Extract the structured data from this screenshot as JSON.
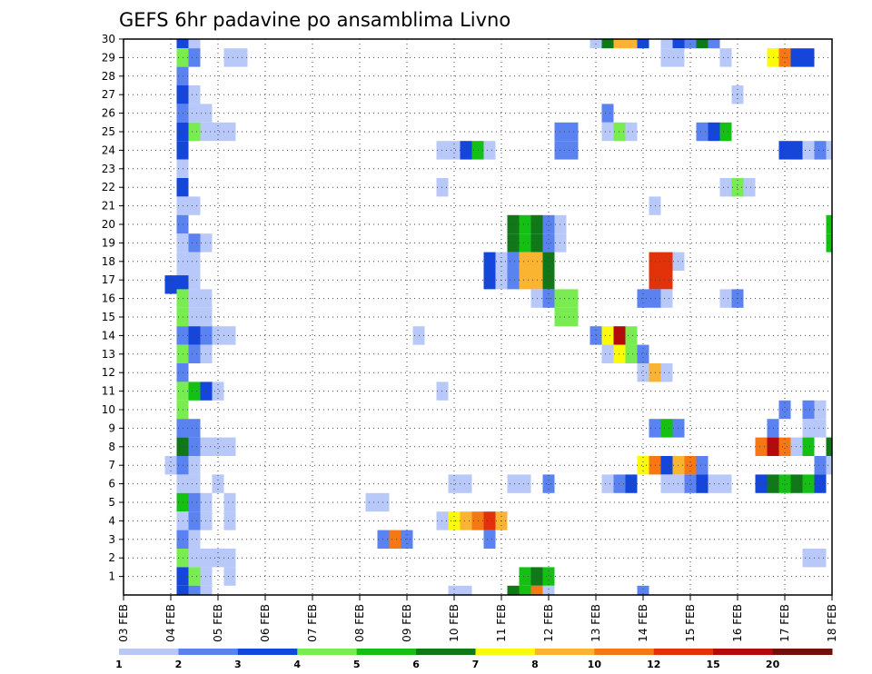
{
  "chart_data": {
    "type": "heatmap",
    "title": "GEFS 6hr padavine po ansamblima Livno",
    "x_tick_labels": [
      "03 FEB",
      "04 FEB",
      "05 FEB",
      "06 FEB",
      "07 FEB",
      "08 FEB",
      "09 FEB",
      "10 FEB",
      "11 FEB",
      "12 FEB",
      "13 FEB",
      "14 FEB",
      "15 FEB",
      "16 FEB",
      "17 FEB",
      "18 FEB"
    ],
    "y_tick_labels": [
      "1",
      "2",
      "3",
      "4",
      "5",
      "6",
      "7",
      "8",
      "9",
      "10",
      "11",
      "12",
      "13",
      "14",
      "15",
      "16",
      "17",
      "18",
      "19",
      "20",
      "21",
      "22",
      "23",
      "24",
      "25",
      "26",
      "27",
      "28",
      "29",
      "30"
    ],
    "xlim_days": [
      3,
      18
    ],
    "ylim_member": [
      0,
      30
    ],
    "grid": true,
    "colorbar": {
      "levels": [
        "1",
        "2",
        "3",
        "4",
        "5",
        "6",
        "7",
        "8",
        "10",
        "12",
        "15",
        "20"
      ],
      "colors": [
        "#b8c8f8",
        "#5a82f0",
        "#1446dc",
        "#78ec50",
        "#14c014",
        "#107818",
        "#fafa0a",
        "#fab432",
        "#f57814",
        "#e1320a",
        "#b40a0a",
        "#701008"
      ]
    },
    "cells": [
      [
        4.25,
        30,
        3
      ],
      [
        4.5,
        30,
        1
      ],
      [
        13,
        30,
        1
      ],
      [
        13.25,
        30,
        6
      ],
      [
        13.5,
        30,
        8
      ],
      [
        13.75,
        30,
        8
      ],
      [
        14,
        30,
        3
      ],
      [
        14.5,
        30,
        1
      ],
      [
        14.75,
        30,
        3
      ],
      [
        15,
        30,
        2
      ],
      [
        15.25,
        30,
        6
      ],
      [
        15.5,
        30,
        2
      ],
      [
        4.25,
        29,
        4
      ],
      [
        4.5,
        29,
        2
      ],
      [
        5.25,
        29,
        1
      ],
      [
        5.5,
        29,
        1
      ],
      [
        14.5,
        29,
        1
      ],
      [
        14.75,
        29,
        1
      ],
      [
        15.75,
        29,
        1
      ],
      [
        16.75,
        29,
        7
      ],
      [
        17,
        29,
        9
      ],
      [
        17.25,
        29,
        3
      ],
      [
        17.5,
        29,
        3
      ],
      [
        4.25,
        28,
        2
      ],
      [
        4.25,
        27,
        3
      ],
      [
        4.5,
        27,
        1
      ],
      [
        16,
        27,
        1
      ],
      [
        4.25,
        26,
        2
      ],
      [
        4.5,
        26,
        1
      ],
      [
        4.75,
        26,
        1
      ],
      [
        13.25,
        26,
        2
      ],
      [
        4.25,
        25,
        3
      ],
      [
        4.5,
        25,
        4
      ],
      [
        4.75,
        25,
        1
      ],
      [
        5,
        25,
        1
      ],
      [
        5.25,
        25,
        1
      ],
      [
        12.25,
        25,
        2
      ],
      [
        12.5,
        25,
        2
      ],
      [
        13.25,
        25,
        1
      ],
      [
        13.5,
        25,
        4
      ],
      [
        13.75,
        25,
        1
      ],
      [
        15.25,
        25,
        2
      ],
      [
        15.5,
        25,
        3
      ],
      [
        15.75,
        25,
        5
      ],
      [
        4.25,
        24,
        3
      ],
      [
        9.75,
        24,
        1
      ],
      [
        10,
        24,
        1
      ],
      [
        10.25,
        24,
        3
      ],
      [
        10.5,
        24,
        5
      ],
      [
        10.75,
        24,
        1
      ],
      [
        12.25,
        24,
        2
      ],
      [
        12.5,
        24,
        2
      ],
      [
        17,
        24,
        3
      ],
      [
        17.25,
        24,
        3
      ],
      [
        17.5,
        24,
        1
      ],
      [
        17.75,
        24,
        2
      ],
      [
        18,
        24,
        1
      ],
      [
        4.25,
        23,
        1
      ],
      [
        4.25,
        22,
        3
      ],
      [
        9.75,
        22,
        1
      ],
      [
        15.75,
        22,
        1
      ],
      [
        16,
        22,
        4
      ],
      [
        16.25,
        22,
        1
      ],
      [
        4.25,
        21,
        1
      ],
      [
        4.5,
        21,
        1
      ],
      [
        14.25,
        21,
        1
      ],
      [
        4.25,
        20,
        2
      ],
      [
        11.25,
        20,
        6
      ],
      [
        11.5,
        20,
        5
      ],
      [
        11.75,
        20,
        6
      ],
      [
        12,
        20,
        2
      ],
      [
        12.25,
        20,
        1
      ],
      [
        18,
        20,
        5
      ],
      [
        4.25,
        19,
        1
      ],
      [
        4.5,
        19,
        2
      ],
      [
        4.75,
        19,
        1
      ],
      [
        11.25,
        19,
        6
      ],
      [
        11.5,
        19,
        5
      ],
      [
        11.75,
        19,
        6
      ],
      [
        12,
        19,
        2
      ],
      [
        12.25,
        19,
        1
      ],
      [
        18,
        19,
        5
      ],
      [
        4.25,
        18,
        1
      ],
      [
        4.5,
        18,
        1
      ],
      [
        10.75,
        18,
        3
      ],
      [
        11,
        18,
        1
      ],
      [
        11.25,
        18,
        2
      ],
      [
        11.5,
        18,
        8
      ],
      [
        11.75,
        18,
        8
      ],
      [
        12,
        18,
        6
      ],
      [
        14.25,
        18,
        10
      ],
      [
        14.5,
        18,
        10
      ],
      [
        14.75,
        18,
        1
      ],
      [
        4.25,
        17,
        1
      ],
      [
        4.5,
        17,
        1
      ],
      [
        10.75,
        17,
        3
      ],
      [
        11,
        17,
        1
      ],
      [
        11.25,
        17,
        2
      ],
      [
        11.5,
        17,
        8
      ],
      [
        11.75,
        17,
        8
      ],
      [
        12,
        17,
        6
      ],
      [
        14.25,
        17,
        10
      ],
      [
        14.5,
        17,
        10
      ],
      [
        4,
        16.75,
        3
      ],
      [
        4.25,
        16.75,
        3
      ],
      [
        4.25,
        16,
        4
      ],
      [
        4.5,
        16,
        1
      ],
      [
        4.75,
        16,
        1
      ],
      [
        11.75,
        16,
        1
      ],
      [
        12,
        16,
        2
      ],
      [
        12.25,
        16,
        4
      ],
      [
        12.5,
        16,
        4
      ],
      [
        14,
        16,
        2
      ],
      [
        14.25,
        16,
        2
      ],
      [
        14.5,
        16,
        1
      ],
      [
        15.75,
        16,
        1
      ],
      [
        16,
        16,
        2
      ],
      [
        4.25,
        15,
        4
      ],
      [
        4.5,
        15,
        1
      ],
      [
        4.75,
        15,
        1
      ],
      [
        12.25,
        15,
        4
      ],
      [
        12.5,
        15,
        4
      ],
      [
        4.25,
        14,
        2
      ],
      [
        4.5,
        14,
        3
      ],
      [
        4.75,
        14,
        2
      ],
      [
        5,
        14,
        1
      ],
      [
        5.25,
        14,
        1
      ],
      [
        9.25,
        14,
        1
      ],
      [
        13,
        14,
        2
      ],
      [
        13.25,
        14,
        7
      ],
      [
        13.5,
        14,
        11
      ],
      [
        13.75,
        14,
        4
      ],
      [
        4.25,
        13,
        4
      ],
      [
        4.5,
        13,
        2
      ],
      [
        4.75,
        13,
        1
      ],
      [
        13.25,
        13,
        1
      ],
      [
        13.5,
        13,
        7
      ],
      [
        13.75,
        13,
        4
      ],
      [
        14,
        13,
        2
      ],
      [
        4.25,
        12,
        2
      ],
      [
        14,
        12,
        1
      ],
      [
        14.25,
        12,
        8
      ],
      [
        14.5,
        12,
        1
      ],
      [
        4.25,
        11,
        4
      ],
      [
        4.5,
        11,
        5
      ],
      [
        4.75,
        11,
        3
      ],
      [
        5,
        11,
        1
      ],
      [
        9.75,
        11,
        1
      ],
      [
        4.25,
        10,
        4
      ],
      [
        17,
        10,
        2
      ],
      [
        17.5,
        10,
        2
      ],
      [
        17.75,
        10,
        1
      ],
      [
        4.25,
        9,
        2
      ],
      [
        4.5,
        9,
        2
      ],
      [
        14.25,
        9,
        2
      ],
      [
        14.5,
        9,
        5
      ],
      [
        14.75,
        9,
        2
      ],
      [
        16.75,
        9,
        2
      ],
      [
        17.5,
        9,
        1
      ],
      [
        17.75,
        9,
        1
      ],
      [
        4.25,
        8,
        6
      ],
      [
        4.5,
        8,
        2
      ],
      [
        4.75,
        8,
        1
      ],
      [
        5,
        8,
        1
      ],
      [
        5.25,
        8,
        1
      ],
      [
        16.5,
        8,
        9
      ],
      [
        16.75,
        8,
        11
      ],
      [
        17,
        8,
        9
      ],
      [
        17.25,
        8,
        1
      ],
      [
        17.5,
        8,
        5
      ],
      [
        18,
        8,
        6
      ],
      [
        4,
        7,
        1
      ],
      [
        4.25,
        7,
        2
      ],
      [
        4.5,
        7,
        1
      ],
      [
        14,
        7,
        7
      ],
      [
        14.25,
        7,
        9
      ],
      [
        14.5,
        7,
        3
      ],
      [
        14.75,
        7,
        8
      ],
      [
        15,
        7,
        9
      ],
      [
        15.25,
        7,
        2
      ],
      [
        17.75,
        7,
        2
      ],
      [
        18,
        7,
        1
      ],
      [
        4.25,
        6,
        1
      ],
      [
        4.5,
        6,
        1
      ],
      [
        5,
        6,
        1
      ],
      [
        10,
        6,
        1
      ],
      [
        10.25,
        6,
        1
      ],
      [
        11.25,
        6,
        1
      ],
      [
        11.5,
        6,
        1
      ],
      [
        12,
        6,
        2
      ],
      [
        13.25,
        6,
        1
      ],
      [
        13.5,
        6,
        2
      ],
      [
        13.75,
        6,
        3
      ],
      [
        14.5,
        6,
        1
      ],
      [
        14.75,
        6,
        1
      ],
      [
        15,
        6,
        2
      ],
      [
        15.25,
        6,
        3
      ],
      [
        15.5,
        6,
        1
      ],
      [
        15.75,
        6,
        1
      ],
      [
        16.5,
        6,
        3
      ],
      [
        16.75,
        6,
        6
      ],
      [
        17,
        6,
        5
      ],
      [
        17.25,
        6,
        6
      ],
      [
        17.5,
        6,
        5
      ],
      [
        17.75,
        6,
        3
      ],
      [
        4.25,
        5,
        5
      ],
      [
        4.5,
        5,
        2
      ],
      [
        4.75,
        5,
        1
      ],
      [
        5.25,
        5,
        1
      ],
      [
        8.25,
        5,
        1
      ],
      [
        8.5,
        5,
        1
      ],
      [
        4.25,
        4,
        1
      ],
      [
        4.5,
        4,
        2
      ],
      [
        4.75,
        4,
        1
      ],
      [
        5.25,
        4,
        1
      ],
      [
        9.75,
        4,
        1
      ],
      [
        10,
        4,
        7
      ],
      [
        10.25,
        4,
        8
      ],
      [
        10.5,
        4,
        9
      ],
      [
        10.75,
        4,
        10
      ],
      [
        11,
        4,
        8
      ],
      [
        4.25,
        3,
        2
      ],
      [
        4.5,
        3,
        1
      ],
      [
        8.5,
        3,
        2
      ],
      [
        8.75,
        3,
        9
      ],
      [
        9,
        3,
        2
      ],
      [
        10.75,
        3,
        2
      ],
      [
        4.25,
        2,
        4
      ],
      [
        4.5,
        2,
        1
      ],
      [
        4.75,
        2,
        1
      ],
      [
        5,
        2,
        1
      ],
      [
        5.25,
        2,
        1
      ],
      [
        17.5,
        2,
        1
      ],
      [
        17.75,
        2,
        1
      ],
      [
        4.25,
        1,
        3
      ],
      [
        4.5,
        1,
        4
      ],
      [
        4.75,
        1,
        1
      ],
      [
        5.25,
        1,
        1
      ],
      [
        11.5,
        1,
        5
      ],
      [
        11.75,
        1,
        6
      ],
      [
        12,
        1,
        5
      ],
      [
        4.25,
        0,
        3
      ],
      [
        4.5,
        0,
        2
      ],
      [
        4.75,
        0,
        1
      ],
      [
        10,
        0,
        1
      ],
      [
        10.25,
        0,
        1
      ],
      [
        11.25,
        0,
        6
      ],
      [
        11.5,
        0,
        5
      ],
      [
        11.75,
        0,
        9
      ],
      [
        12,
        0,
        1
      ],
      [
        14,
        0,
        2
      ]
    ]
  }
}
